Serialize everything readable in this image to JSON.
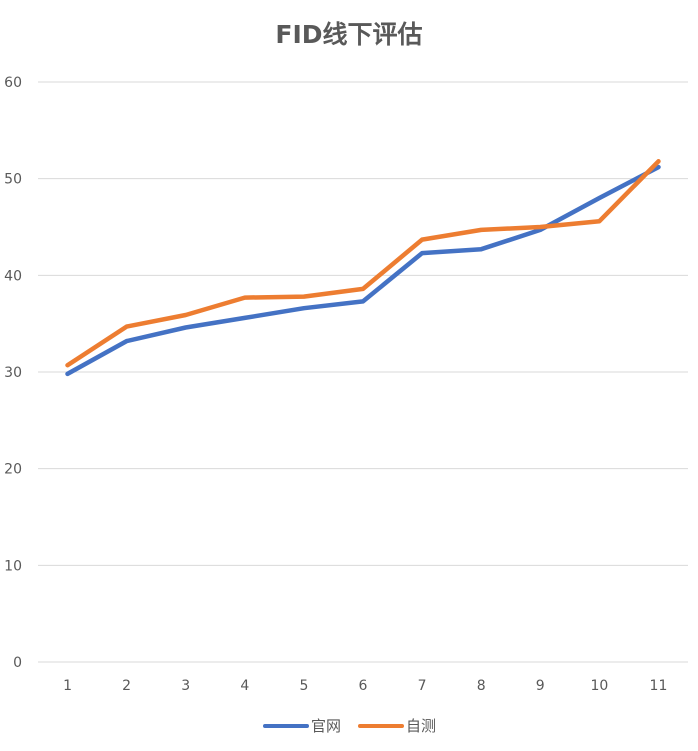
{
  "chart_data": {
    "type": "line",
    "title": "FID线下评估",
    "xlabel": "",
    "ylabel": "",
    "categories": [
      "1",
      "2",
      "3",
      "4",
      "5",
      "6",
      "7",
      "8",
      "9",
      "10",
      "11"
    ],
    "ylim": [
      0,
      60
    ],
    "yticks": [
      0,
      10,
      20,
      30,
      40,
      50,
      60
    ],
    "grid": true,
    "legend": "bottom",
    "series": [
      {
        "name": "官网",
        "color": "#4472c4",
        "values": [
          29.8,
          33.2,
          34.6,
          35.6,
          36.6,
          37.3,
          42.3,
          42.7,
          44.7,
          48.0,
          51.2
        ]
      },
      {
        "name": "自测",
        "color": "#ed7d31",
        "values": [
          30.7,
          34.7,
          35.9,
          37.7,
          37.8,
          38.6,
          43.7,
          44.7,
          45.0,
          45.6,
          51.8
        ]
      }
    ]
  }
}
